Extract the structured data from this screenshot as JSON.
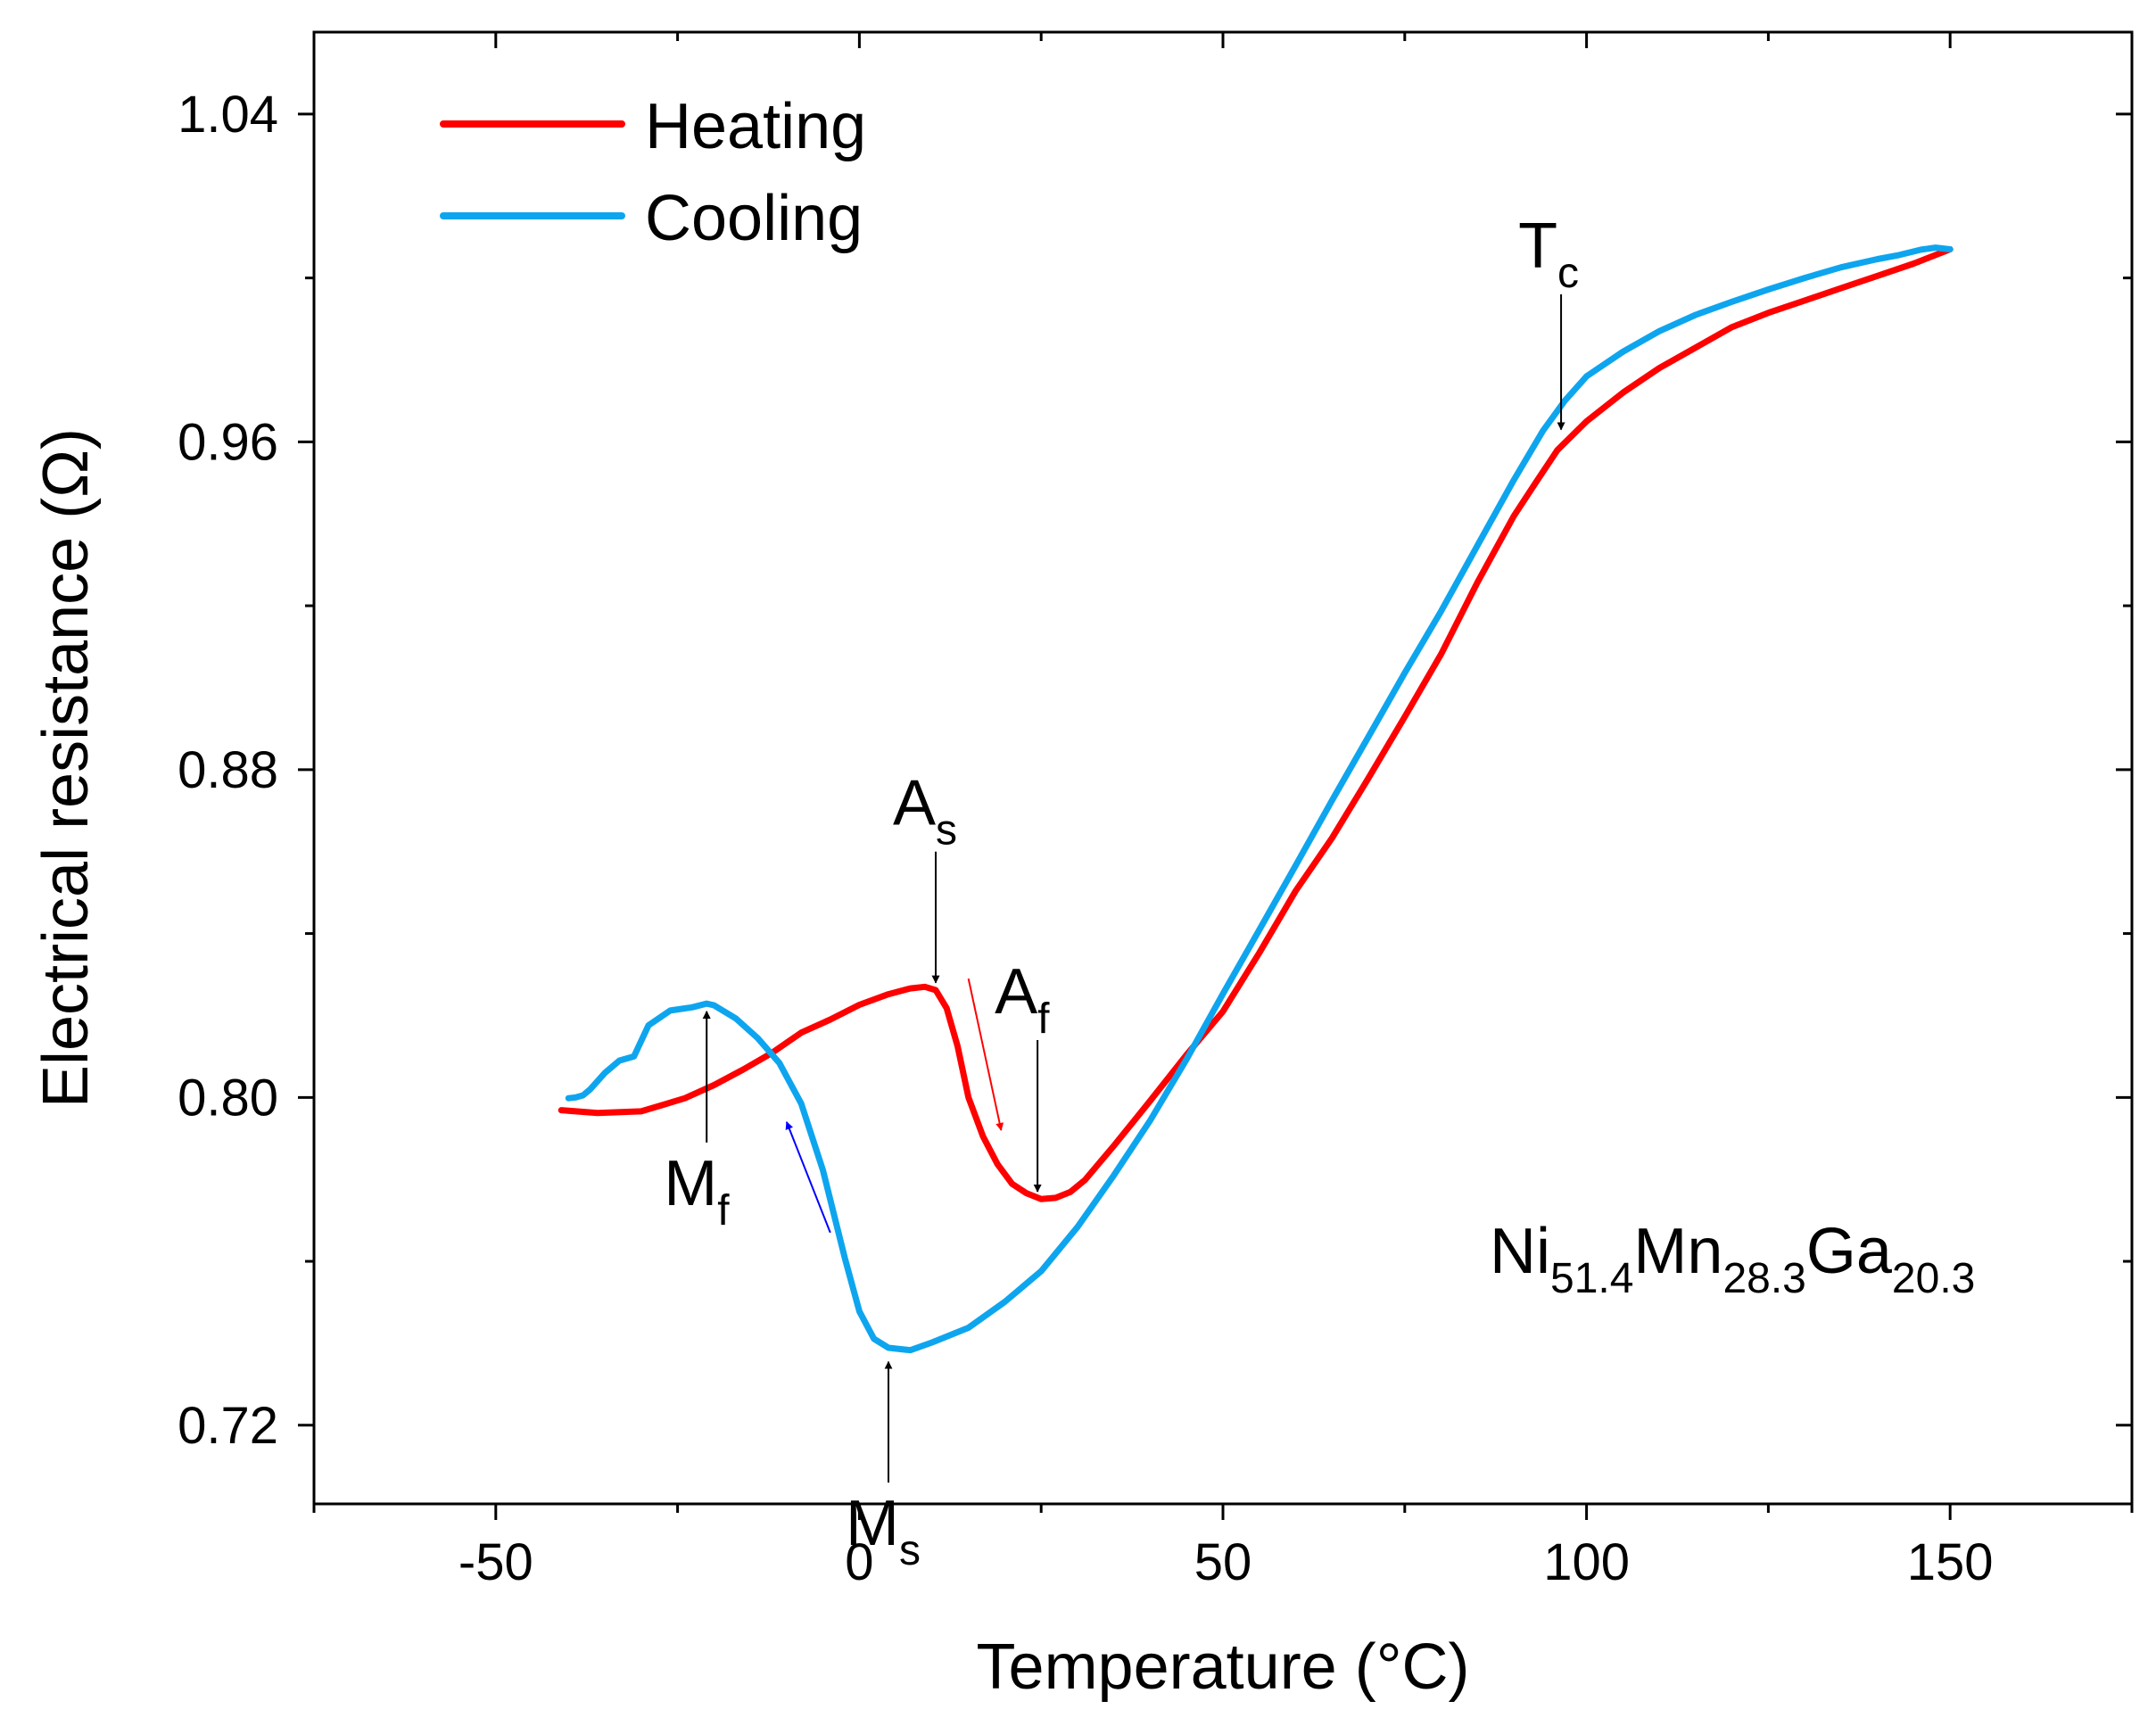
{
  "chart_data": {
    "type": "line",
    "xlabel": "Temperature (°C)",
    "ylabel": "Electrical resistance (Ω)",
    "xlim": [
      -75,
      175
    ],
    "ylim": [
      0.7008,
      1.06
    ],
    "x_ticks": [
      -50,
      0,
      50,
      100,
      150
    ],
    "x_tick_labels": [
      "-50",
      "0",
      "50",
      "100",
      "150"
    ],
    "y_ticks": [
      0.72,
      0.8,
      0.88,
      0.96,
      1.04
    ],
    "y_tick_labels": [
      "0.72",
      "0.80",
      "0.88",
      "0.96",
      "1.04"
    ],
    "grid": false,
    "legend_position": "top-left",
    "series": [
      {
        "name": "Heating",
        "color": "#ff0000",
        "x": [
          -41,
          -36,
          -30,
          -27,
          -24,
          -20,
          -16,
          -12,
          -8,
          -4,
          0,
          4,
          7,
          9,
          10.5,
          12,
          13.5,
          15,
          17,
          19,
          21,
          23,
          25,
          27,
          29,
          31,
          35,
          40,
          45,
          50,
          55,
          60,
          65,
          70,
          75,
          80,
          85,
          90,
          93,
          96,
          100,
          105,
          110,
          115,
          120,
          125,
          130,
          135,
          140,
          145,
          150
        ],
        "y": [
          0.7969,
          0.7962,
          0.7966,
          0.7982,
          0.7998,
          0.803,
          0.8068,
          0.8109,
          0.8158,
          0.819,
          0.8226,
          0.8252,
          0.8266,
          0.827,
          0.8262,
          0.8218,
          0.8125,
          0.8,
          0.7905,
          0.7837,
          0.7789,
          0.7766,
          0.7752,
          0.7755,
          0.7769,
          0.7798,
          0.7882,
          0.7992,
          0.8104,
          0.821,
          0.8353,
          0.8504,
          0.8633,
          0.8779,
          0.8929,
          0.9082,
          0.9257,
          0.9419,
          0.95,
          0.958,
          0.965,
          0.972,
          0.978,
          0.983,
          0.988,
          0.9915,
          0.9945,
          0.9975,
          1.0005,
          1.0035,
          1.007
        ]
      },
      {
        "name": "Cooling",
        "color": "#0ea5ef",
        "x": [
          150,
          148,
          146,
          143,
          140,
          135,
          130,
          125,
          120,
          115,
          110,
          105,
          100,
          97,
          94,
          90,
          85,
          80,
          75,
          70,
          65,
          60,
          55,
          50,
          45,
          40,
          35,
          30,
          25,
          20,
          15,
          10,
          7,
          4,
          2,
          0,
          -2,
          -5,
          -8,
          -11,
          -14,
          -17,
          -20,
          -21,
          -23,
          -26,
          -29,
          -31,
          -33,
          -35,
          -37,
          -38,
          -39,
          -40
        ],
        "y": [
          1.007,
          1.0074,
          1.0069,
          1.0056,
          1.0046,
          1.0026,
          1.0,
          0.9972,
          0.9942,
          0.991,
          0.987,
          0.982,
          0.976,
          0.97,
          0.9627,
          0.9507,
          0.9347,
          0.9187,
          0.9036,
          0.888,
          0.8725,
          0.8566,
          0.8409,
          0.8253,
          0.8093,
          0.7944,
          0.781,
          0.7684,
          0.7576,
          0.7501,
          0.7438,
          0.7402,
          0.7383,
          0.7389,
          0.7411,
          0.7478,
          0.7608,
          0.7822,
          0.7985,
          0.8084,
          0.8145,
          0.8193,
          0.8225,
          0.8229,
          0.822,
          0.8212,
          0.8176,
          0.81,
          0.809,
          0.806,
          0.802,
          0.8005,
          0.8,
          0.7998
        ]
      }
    ],
    "annotations": [
      {
        "main": "A",
        "sub": "s",
        "arrow_x": 10.5,
        "arrow_y_from": 0.86,
        "arrow_y_to": 0.828
      },
      {
        "main": "A",
        "sub": "f",
        "arrow_x": 24.5,
        "arrow_y_from": 0.814,
        "arrow_y_to": 0.777
      },
      {
        "main": "M",
        "sub": "f",
        "arrow_x": -21,
        "arrow_y_from": 0.789,
        "arrow_y_to": 0.821
      },
      {
        "main": "M",
        "sub": "s",
        "arrow_x": 4,
        "arrow_y_from": 0.706,
        "arrow_y_to": 0.7355
      },
      {
        "main": "T",
        "sub": "c",
        "arrow_x": 96.5,
        "arrow_y_from": 0.996,
        "arrow_y_to": 0.963
      }
    ],
    "direction_arrows": [
      {
        "series": "Heating",
        "color": "#ff0000",
        "from": [
          15,
          0.829
        ],
        "to": [
          19.5,
          0.792
        ]
      },
      {
        "series": "Cooling",
        "color": "#0000ff",
        "from": [
          -4,
          0.767
        ],
        "to": [
          -10,
          0.794
        ]
      }
    ],
    "formula": {
      "parts": [
        {
          "text": "Ni",
          "sub": "51.4"
        },
        {
          "text": "Mn",
          "sub": "28.3"
        },
        {
          "text": "Ga",
          "sub": "20.3"
        }
      ]
    }
  }
}
